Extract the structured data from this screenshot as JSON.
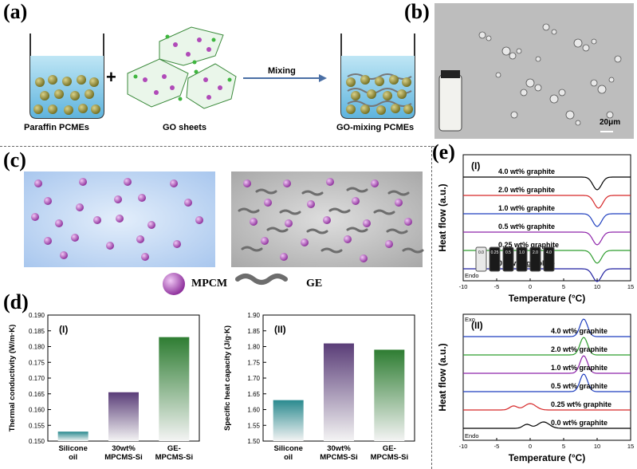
{
  "panel_a": {
    "label": "(a)",
    "captions": {
      "left": "Paraffin PCMEs",
      "middle": "GO sheets",
      "right": "GO-mixing PCMEs"
    },
    "arrow_label": "Mixing",
    "plus": "+"
  },
  "panel_b": {
    "label": "(b)",
    "scale_bar": "20μm"
  },
  "panel_c": {
    "label": "(c)",
    "legend": {
      "mpcm": "MPCM",
      "ge": "GE"
    }
  },
  "panel_d": {
    "label": "(d)",
    "chart_data": [
      {
        "type": "bar",
        "panel": "(I)",
        "categories": [
          "Silicone oil",
          "30wt% MPCMS-Si",
          "GE- MPCMS-Si"
        ],
        "values": [
          0.153,
          0.1655,
          0.183
        ],
        "ylabel": "Thermal conductivity (W/m·K)",
        "ylim": [
          0.15,
          0.19
        ],
        "yticks": [
          "0.150",
          "0.155",
          "0.160",
          "0.165",
          "0.170",
          "0.175",
          "0.180",
          "0.185",
          "0.190"
        ],
        "colors": [
          "#2a8a8f",
          "#5a3d78",
          "#2e7d32"
        ]
      },
      {
        "type": "bar",
        "panel": "(II)",
        "categories": [
          "Silicone oil",
          "30wt% MPCMS-Si",
          "GE- MPCMS-Si"
        ],
        "values": [
          1.63,
          1.81,
          1.79
        ],
        "ylabel": "Specific heat capacity (J/g·K)",
        "ylim": [
          1.5,
          1.9
        ],
        "yticks": [
          "1.50",
          "1.55",
          "1.60",
          "1.65",
          "1.70",
          "1.75",
          "1.80",
          "1.85",
          "1.90"
        ],
        "colors": [
          "#2a8a8f",
          "#5a3d78",
          "#2e7d32"
        ]
      }
    ]
  },
  "panel_e": {
    "label": "(e)",
    "chart_data": [
      {
        "type": "line",
        "panel": "(I)",
        "xlabel": "Temperature (°C)",
        "ylabel": "Heat flow  (a.u.)",
        "y_annotation": "Endo",
        "xlim": [
          -10,
          15
        ],
        "xticks": [
          "-10",
          "-5",
          "0",
          "5",
          "10",
          "15"
        ],
        "series": [
          {
            "name": "4.0 wt% graphite",
            "color": "#000000",
            "peak_x": 10.0
          },
          {
            "name": "2.0 wt% graphite",
            "color": "#d62728",
            "peak_x": 10.2
          },
          {
            "name": "1.0 wt% graphite",
            "color": "#1f3fbf",
            "peak_x": 10.0
          },
          {
            "name": "0.5 wt% graphite",
            "color": "#8e24aa",
            "peak_x": 10.0
          },
          {
            "name": "0.25 wt% graphite",
            "color": "#2e9d2e",
            "peak_x": 10.0
          },
          {
            "name": "0.0 wt% graphite",
            "color": "#1f1fa0",
            "peak_x": 10.0
          }
        ],
        "vial_labels": [
          "0.0",
          "0.25",
          "0.5",
          "1.0",
          "2.0",
          "4.0"
        ]
      },
      {
        "type": "line",
        "panel": "(II)",
        "xlabel": "Temperature (°C)",
        "ylabel": "Heat flow  (a.u.)",
        "y_annotation_top": "Exo",
        "y_annotation_bottom": "Endo",
        "xlim": [
          -10,
          15
        ],
        "xticks": [
          "-10",
          "-5",
          "0",
          "5",
          "10",
          "15"
        ],
        "series": [
          {
            "name": "4.0 wt% graphite",
            "color": "#1f3fbf",
            "peak_x": 8.0
          },
          {
            "name": "2.0 wt% graphite",
            "color": "#2e9d2e",
            "peak_x": 8.0
          },
          {
            "name": "1.0 wt% graphite",
            "color": "#8e24aa",
            "peak_x": 8.0
          },
          {
            "name": "0.5 wt% graphite",
            "color": "#1f3fbf",
            "peak_x": 8.0
          },
          {
            "name": "0.25 wt% graphite",
            "color": "#d62728",
            "peak_x": 0.0
          },
          {
            "name": "0.0 wt% graphite",
            "color": "#000000",
            "peak_x": 2.0
          }
        ]
      }
    ]
  }
}
